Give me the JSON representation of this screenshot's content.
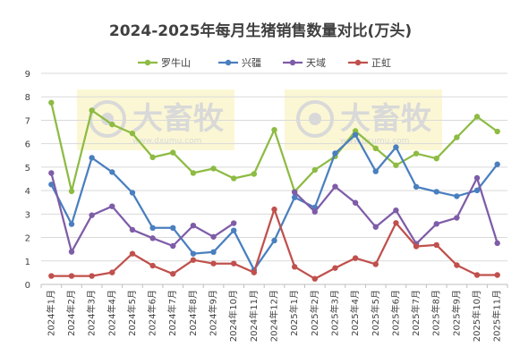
{
  "chart_data": {
    "type": "line",
    "title": "2024-2025年每月生猪销售数量对比(万头)",
    "xlabel": "",
    "ylabel": "",
    "ylim": [
      0,
      9
    ],
    "yticks": [
      0,
      1,
      2,
      3,
      4,
      5,
      6,
      7,
      8,
      9
    ],
    "grid": "horizontal",
    "legend_position": "top",
    "categories": [
      "2024年1月",
      "2024年2月",
      "2024年3月",
      "2024年4月",
      "2024年5月",
      "2024年6月",
      "2024年7月",
      "2024年8月",
      "2024年9月",
      "2024年10月",
      "2024年11月",
      "2024年12月",
      "2025年1月",
      "2025年2月",
      "2025年3月",
      "2025年4月",
      "2025年5月",
      "2025年6月",
      "2025年7月",
      "2025年8月",
      "2025年9月",
      "2025年10月",
      "2025年11月"
    ],
    "series": [
      {
        "name": "罗牛山",
        "color": "#8dbb43",
        "values": [
          7.75,
          3.97,
          7.42,
          6.82,
          6.44,
          5.42,
          5.62,
          4.75,
          4.94,
          4.52,
          4.71,
          6.59,
          3.96,
          4.88,
          5.46,
          6.54,
          5.8,
          5.08,
          5.58,
          5.37,
          6.27,
          7.15,
          6.52
        ]
      },
      {
        "name": "兴疆",
        "color": "#4a7fbf",
        "values": [
          4.26,
          2.57,
          5.4,
          4.79,
          3.91,
          2.41,
          2.41,
          1.31,
          1.38,
          2.3,
          0.62,
          1.87,
          3.71,
          3.28,
          5.59,
          6.38,
          4.82,
          5.85,
          4.16,
          3.95,
          3.76,
          4.01,
          5.12
        ]
      },
      {
        "name": "天域",
        "color": "#7e5ca8",
        "values": [
          4.75,
          1.39,
          2.95,
          3.33,
          2.33,
          1.97,
          1.64,
          2.51,
          2.03,
          2.61,
          null,
          null,
          3.93,
          3.1,
          4.17,
          3.48,
          2.45,
          3.16,
          1.73,
          2.58,
          2.84,
          4.54,
          1.76
        ]
      },
      {
        "name": "正虹",
        "color": "#c0504d",
        "values": [
          0.36,
          0.36,
          0.36,
          0.51,
          1.31,
          0.8,
          0.45,
          1.04,
          0.89,
          0.89,
          0.51,
          3.2,
          0.75,
          0.24,
          0.7,
          1.12,
          0.86,
          2.62,
          1.62,
          1.68,
          0.82,
          0.4,
          0.4
        ]
      }
    ]
  },
  "watermark": {
    "brand": "大畜牧",
    "site": "www.dxumu.com"
  }
}
